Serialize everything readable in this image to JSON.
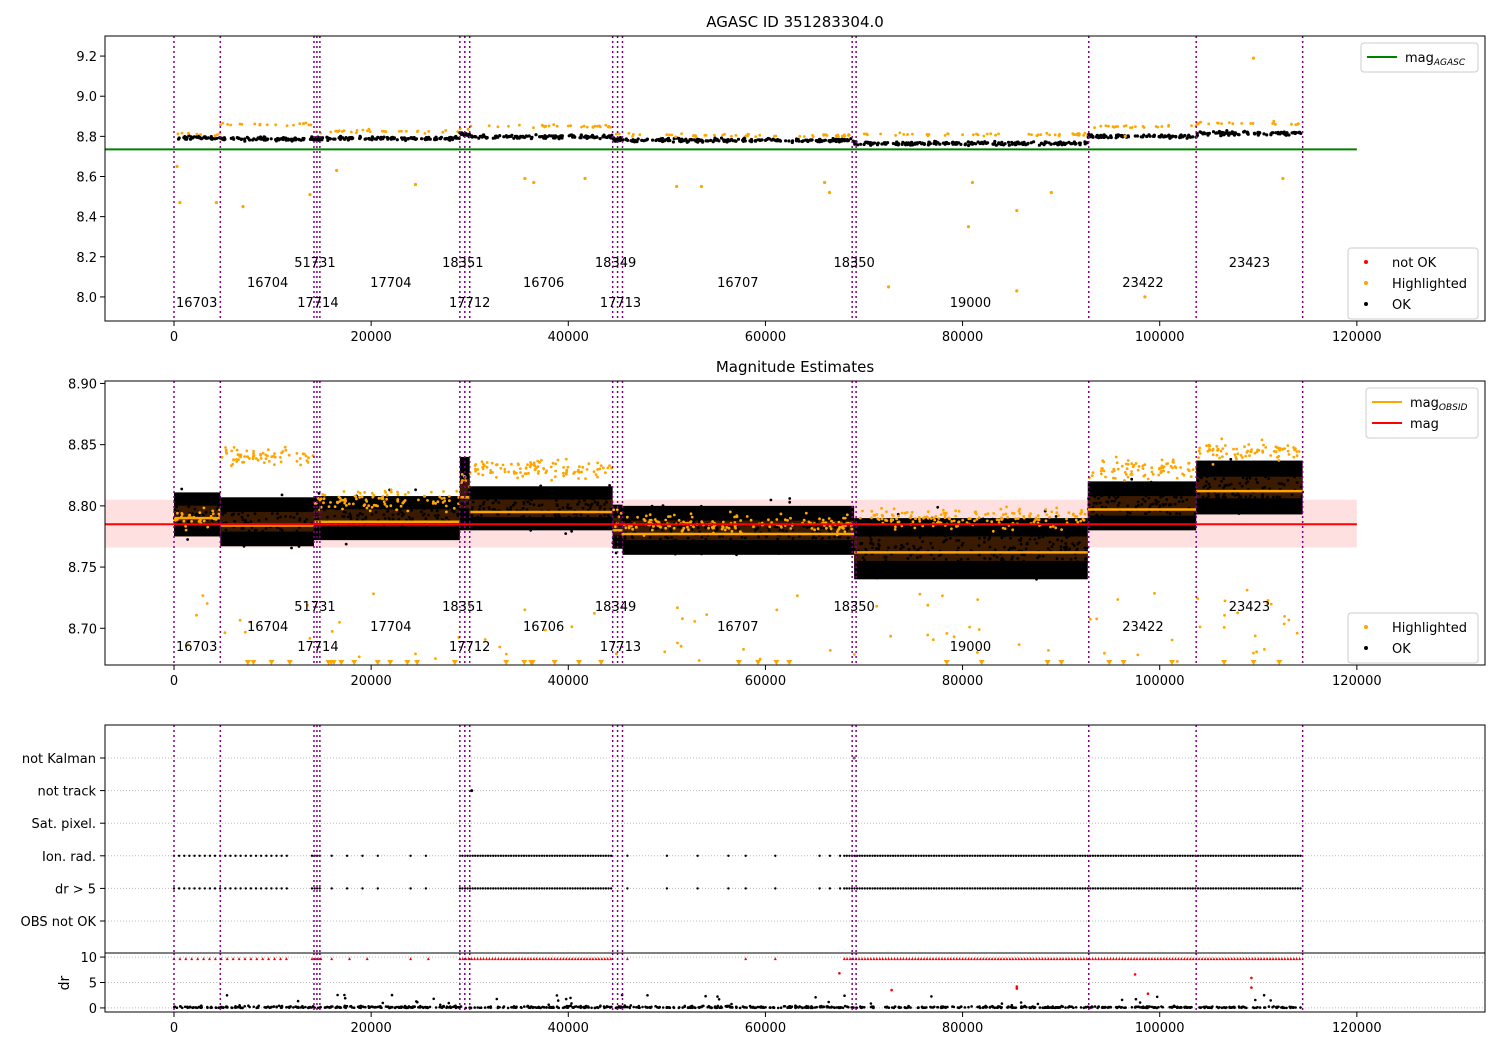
{
  "chart_data": [
    {
      "type": "scatter",
      "title": "AGASC ID 351283304.0",
      "xlim": [
        -7000,
        133000
      ],
      "ylim": [
        7.88,
        9.3
      ],
      "xticks": [
        0,
        20000,
        40000,
        60000,
        80000,
        100000,
        120000
      ],
      "xtick_labels": [
        "0",
        "20000",
        "40000",
        "60000",
        "80000",
        "100000",
        "120000"
      ],
      "yticks": [
        8.0,
        8.2,
        8.4,
        8.6,
        8.8,
        9.0,
        9.2
      ],
      "ytick_labels": [
        "8.0",
        "8.2",
        "8.4",
        "8.6",
        "8.8",
        "9.0",
        "9.2"
      ],
      "mag_agasc": 8.735,
      "legend_top": {
        "placement": "top-right",
        "entries": [
          {
            "label": "mag",
            "sub": "AGASC",
            "color": "#008000"
          }
        ]
      },
      "legend_bottom": {
        "placement": "bottom-right",
        "entries": [
          {
            "label": "not OK",
            "color": "#ff0000"
          },
          {
            "label": "Highlighted",
            "color": "#ffa500"
          },
          {
            "label": "OK",
            "color": "#000000"
          }
        ]
      },
      "segments": [
        {
          "x0": 0,
          "x1": 4700,
          "level": 8.793,
          "spread": 0.018,
          "highlight": 8.79
        },
        {
          "x0": 4700,
          "x1": 14200,
          "level": 8.787,
          "spread": 0.02,
          "highlight": 8.84
        },
        {
          "x0": 14200,
          "x1": 14800,
          "level": 8.79,
          "spread": 0.018,
          "highlight": 8.8
        },
        {
          "x0": 14800,
          "x1": 29000,
          "level": 8.79,
          "spread": 0.018,
          "highlight": 8.805
        },
        {
          "x0": 29000,
          "x1": 30000,
          "level": 8.81,
          "spread": 0.03,
          "highlight": 8.82
        },
        {
          "x0": 30000,
          "x1": 44500,
          "level": 8.798,
          "spread": 0.018,
          "highlight": 8.83
        },
        {
          "x0": 44500,
          "x1": 45500,
          "level": 8.783,
          "spread": 0.018,
          "highlight": 8.79
        },
        {
          "x0": 45500,
          "x1": 69000,
          "level": 8.78,
          "spread": 0.02,
          "highlight": 8.785
        },
        {
          "x0": 69000,
          "x1": 92700,
          "level": 8.765,
          "spread": 0.025,
          "highlight": 8.79
        },
        {
          "x0": 92700,
          "x1": 103700,
          "level": 8.8,
          "spread": 0.02,
          "highlight": 8.83
        },
        {
          "x0": 103700,
          "x1": 114500,
          "level": 8.815,
          "spread": 0.022,
          "highlight": 8.845
        }
      ],
      "vlines": [
        0,
        4700,
        14200,
        14500,
        14800,
        29000,
        29500,
        30000,
        44500,
        45000,
        45500,
        68800,
        69200,
        92800,
        103700,
        114500
      ],
      "obsid_labels": [
        {
          "text": "16703",
          "x": 2300,
          "row": 3
        },
        {
          "text": "16704",
          "x": 9500,
          "row": 2
        },
        {
          "text": "51731",
          "x": 14300,
          "row": 1
        },
        {
          "text": "17714",
          "x": 14600,
          "row": 3
        },
        {
          "text": "17704",
          "x": 22000,
          "row": 2
        },
        {
          "text": "18351",
          "x": 29300,
          "row": 1
        },
        {
          "text": "17712",
          "x": 30000,
          "row": 3
        },
        {
          "text": "16706",
          "x": 37500,
          "row": 2
        },
        {
          "text": "18349",
          "x": 44800,
          "row": 1
        },
        {
          "text": "17713",
          "x": 45300,
          "row": 3
        },
        {
          "text": "16707",
          "x": 57200,
          "row": 2
        },
        {
          "text": "18350",
          "x": 69000,
          "row": 1
        },
        {
          "text": "19000",
          "x": 80800,
          "row": 3
        },
        {
          "text": "23422",
          "x": 98300,
          "row": 2
        },
        {
          "text": "23423",
          "x": 109100,
          "row": 1
        }
      ]
    },
    {
      "type": "scatter",
      "title": "Magnitude Estimates",
      "xlim": [
        -7000,
        133000
      ],
      "ylim": [
        8.67,
        8.902
      ],
      "xticks": [
        0,
        20000,
        40000,
        60000,
        80000,
        100000,
        120000
      ],
      "xtick_labels": [
        "0",
        "20000",
        "40000",
        "60000",
        "80000",
        "100000",
        "120000"
      ],
      "yticks": [
        8.7,
        8.75,
        8.8,
        8.85,
        8.9
      ],
      "ytick_labels": [
        "8.70",
        "8.75",
        "8.80",
        "8.85",
        "8.90"
      ],
      "mag": 8.785,
      "mag_band": [
        8.766,
        8.805
      ],
      "legend_top": {
        "placement": "top-right",
        "entries": [
          {
            "label": "mag",
            "sub": "OBSID",
            "color": "#ffa500"
          },
          {
            "label": "mag",
            "sub": "",
            "color": "#ff0000"
          }
        ]
      },
      "legend_bottom": {
        "placement": "bottom-right",
        "entries": [
          {
            "label": "Highlighted",
            "color": "#ffa500"
          },
          {
            "label": "OK",
            "color": "#000000"
          }
        ]
      }
    },
    {
      "type": "scatter",
      "xlim": [
        -7000,
        133000
      ],
      "categories": [
        "not Kalman",
        "not track",
        "Sat. pixel.",
        "Ion. rad.",
        "dr > 5",
        "OBS not OK"
      ],
      "flag_rows": [
        {
          "name": "not Kalman",
          "density": 0.0
        },
        {
          "name": "not track",
          "density": 0.0
        },
        {
          "name": "Sat. pixel.",
          "density": 0.0
        },
        {
          "name": "Ion. rad.",
          "density": 1.0
        },
        {
          "name": "dr > 5",
          "density": 1.0
        },
        {
          "name": "OBS not OK",
          "density": 0.0
        }
      ]
    },
    {
      "type": "scatter",
      "xlim": [
        -7000,
        133000
      ],
      "ylim": [
        -0.8,
        10.8
      ],
      "ylabel": "dr",
      "yticks": [
        0,
        5,
        10
      ],
      "ytick_labels": [
        "0",
        "5",
        "10"
      ],
      "xticks": [
        0,
        20000,
        40000,
        60000,
        80000,
        100000,
        120000
      ],
      "xtick_labels": [
        "0",
        "20000",
        "40000",
        "60000",
        "80000",
        "100000",
        "120000"
      ]
    }
  ],
  "colors": {
    "ok": "#000000",
    "highlighted": "#ffa500",
    "not_ok": "#ff0000",
    "agasc": "#008000",
    "vline": "#800080",
    "band": "#ffcccc"
  }
}
